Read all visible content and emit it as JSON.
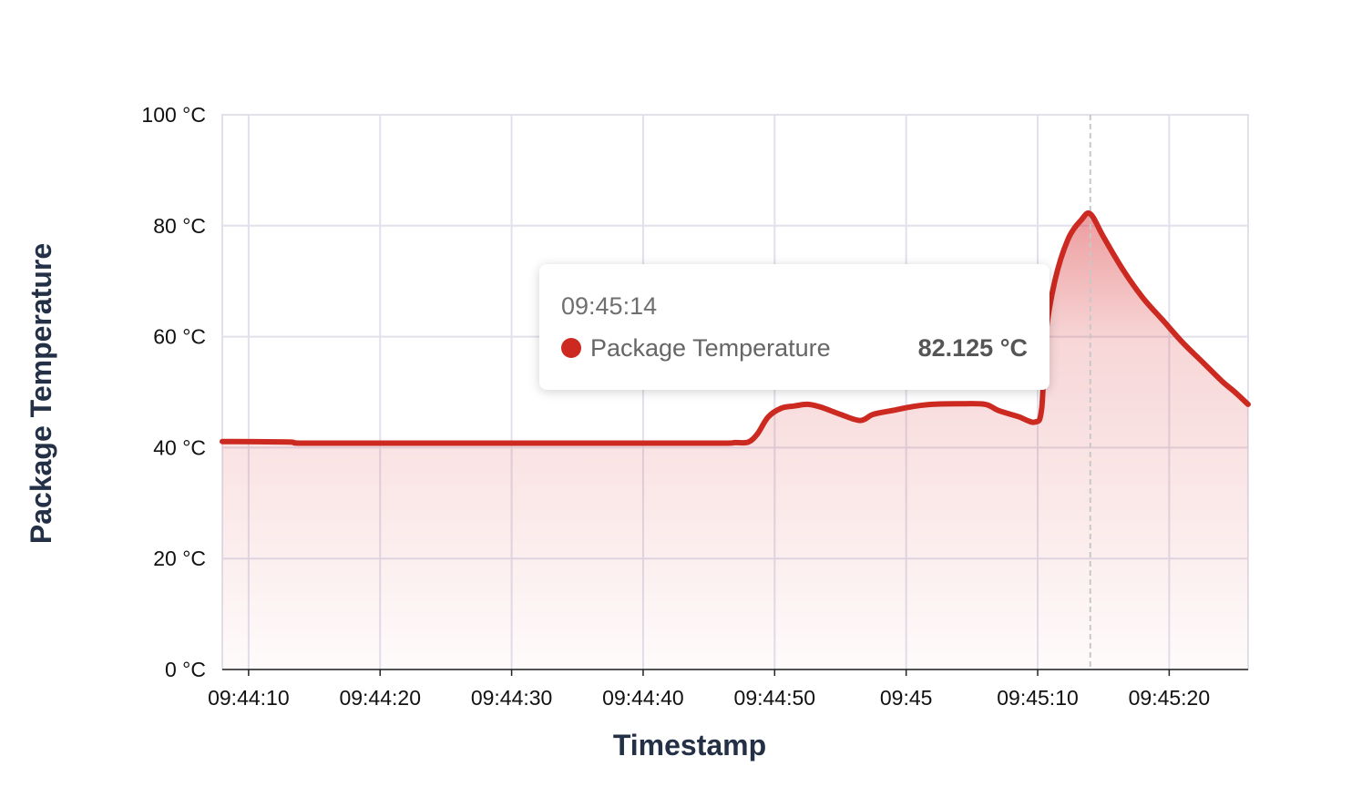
{
  "chart_data": {
    "type": "area",
    "xlabel": "Timestamp",
    "ylabel": "Package Temperature",
    "x_start": "09:44:08",
    "x_end": "09:45:26",
    "ylim": [
      0,
      100
    ],
    "y_unit": "°C",
    "y_ticks": [
      {
        "value": 0,
        "label": "0 °C"
      },
      {
        "value": 20,
        "label": "20 °C"
      },
      {
        "value": 40,
        "label": "40 °C"
      },
      {
        "value": 60,
        "label": "60 °C"
      },
      {
        "value": 80,
        "label": "80 °C"
      },
      {
        "value": 100,
        "label": "100 °C"
      }
    ],
    "x_ticks": [
      {
        "value": "09:44:10",
        "label": "09:44:10"
      },
      {
        "value": "09:44:20",
        "label": "09:44:20"
      },
      {
        "value": "09:44:30",
        "label": "09:44:30"
      },
      {
        "value": "09:44:40",
        "label": "09:44:40"
      },
      {
        "value": "09:44:50",
        "label": "09:44:50"
      },
      {
        "value": "09:45:00",
        "label": "09:45"
      },
      {
        "value": "09:45:10",
        "label": "09:45:10"
      },
      {
        "value": "09:45:20",
        "label": "09:45:20"
      }
    ],
    "grid": true,
    "series": [
      {
        "name": "Package Temperature",
        "color": "#cc2a20",
        "points": [
          [
            "09:44:08",
            41.1
          ],
          [
            "09:44:13",
            41.0
          ],
          [
            "09:44:14",
            40.8
          ],
          [
            "09:44:20",
            40.8
          ],
          [
            "09:44:30",
            40.8
          ],
          [
            "09:44:40",
            40.8
          ],
          [
            "09:44:46",
            40.8
          ],
          [
            "09:44:47",
            40.9
          ],
          [
            "09:44:48",
            41.0
          ],
          [
            "09:44:48.7",
            42.5
          ],
          [
            "09:44:49.5",
            45.5
          ],
          [
            "09:44:50.5",
            47.1
          ],
          [
            "09:44:51.5",
            47.5
          ],
          [
            "09:44:52.5",
            47.8
          ],
          [
            "09:44:53.5",
            47.3
          ],
          [
            "09:44:55",
            46.0
          ],
          [
            "09:44:56.5",
            44.9
          ],
          [
            "09:44:57.5",
            46.0
          ],
          [
            "09:44:59",
            46.7
          ],
          [
            "09:45:00.5",
            47.4
          ],
          [
            "09:45:02",
            47.8
          ],
          [
            "09:45:04",
            47.9
          ],
          [
            "09:45:06",
            47.8
          ],
          [
            "09:45:07",
            46.7
          ],
          [
            "09:45:08.5",
            45.6
          ],
          [
            "09:45:09.8",
            44.6
          ],
          [
            "09:45:10.3",
            47.0
          ],
          [
            "09:45:10.6",
            60.0
          ],
          [
            "09:45:11.3",
            70.0
          ],
          [
            "09:45:12.3",
            77.5
          ],
          [
            "09:45:13.3",
            81.0
          ],
          [
            "09:45:14",
            82.125
          ],
          [
            "09:45:15",
            78.0
          ],
          [
            "09:45:16.5",
            72.0
          ],
          [
            "09:45:18",
            67.0
          ],
          [
            "09:45:19.5",
            63.0
          ],
          [
            "09:45:21",
            59.0
          ],
          [
            "09:45:22.5",
            55.5
          ],
          [
            "09:45:24",
            52.0
          ],
          [
            "09:45:25",
            50.0
          ],
          [
            "09:45:26",
            47.8
          ]
        ]
      }
    ],
    "tooltip": {
      "time": "09:45:14",
      "series_name": "Package Temperature",
      "value": "82.125 °C"
    }
  }
}
